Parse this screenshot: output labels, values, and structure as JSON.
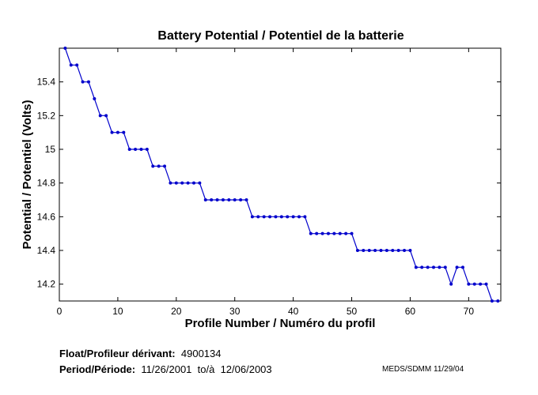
{
  "chart_data": {
    "type": "line",
    "title": "Battery Potential / Potentiel de la batterie",
    "xlabel": "Profile Number / Numéro du profil",
    "ylabel": "Potential / Potentiel (Volts)",
    "xlim": [
      0,
      75.5
    ],
    "ylim": [
      14.1,
      15.6
    ],
    "xticks": [
      0,
      10,
      20,
      30,
      40,
      50,
      60,
      70
    ],
    "yticks": [
      14.2,
      14.4,
      14.6,
      14.8,
      15,
      15.2,
      15.4
    ],
    "ytick_labels": [
      "14.2",
      "14.4",
      "14.6",
      "14.8",
      "15",
      "15.2",
      "15.4"
    ],
    "line_color": "#0000cc",
    "x": [
      1,
      2,
      3,
      4,
      5,
      6,
      7,
      8,
      9,
      10,
      11,
      12,
      13,
      14,
      15,
      16,
      17,
      18,
      19,
      20,
      21,
      22,
      23,
      24,
      25,
      26,
      27,
      28,
      29,
      30,
      31,
      32,
      33,
      34,
      35,
      36,
      37,
      38,
      39,
      40,
      41,
      42,
      43,
      44,
      45,
      46,
      47,
      48,
      49,
      50,
      51,
      52,
      53,
      54,
      55,
      56,
      57,
      58,
      59,
      60,
      61,
      62,
      63,
      64,
      65,
      66,
      67,
      68,
      69,
      70,
      71,
      72,
      73,
      74,
      75
    ],
    "values": [
      15.6,
      15.5,
      15.5,
      15.4,
      15.4,
      15.3,
      15.2,
      15.2,
      15.1,
      15.1,
      15.1,
      15.0,
      15.0,
      15.0,
      15.0,
      14.9,
      14.9,
      14.9,
      14.8,
      14.8,
      14.8,
      14.8,
      14.8,
      14.8,
      14.7,
      14.7,
      14.7,
      14.7,
      14.7,
      14.7,
      14.7,
      14.7,
      14.6,
      14.6,
      14.6,
      14.6,
      14.6,
      14.6,
      14.6,
      14.6,
      14.6,
      14.6,
      14.5,
      14.5,
      14.5,
      14.5,
      14.5,
      14.5,
      14.5,
      14.5,
      14.4,
      14.4,
      14.4,
      14.4,
      14.4,
      14.4,
      14.4,
      14.4,
      14.4,
      14.4,
      14.3,
      14.3,
      14.3,
      14.3,
      14.3,
      14.3,
      14.2,
      14.3,
      14.3,
      14.2,
      14.2,
      14.2,
      14.2,
      14.1,
      14.1
    ]
  },
  "footer": {
    "float_label": "Float/Profileur dérivant:",
    "float_value": "4900134",
    "period_label": "Period/Période:",
    "period_start": "11/26/2001",
    "period_sep": "to/à",
    "period_end": "12/06/2003",
    "credit": "MEDS/SDMM  11/29/04"
  }
}
